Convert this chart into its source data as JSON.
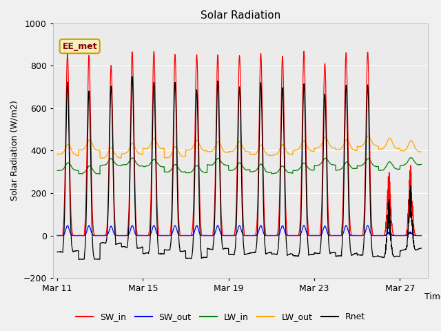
{
  "title": "Solar Radiation",
  "ylabel": "Solar Radiation (W/m2)",
  "xlabel": "Time",
  "ylim": [
    -200,
    1000
  ],
  "x_tick_labels": [
    "Mar 11",
    "Mar 15",
    "Mar 19",
    "Mar 23",
    "Mar 27"
  ],
  "x_tick_positions": [
    0,
    4,
    8,
    12,
    16
  ],
  "annotation_text": "EE_met",
  "plot_bg_color": "#ebebeb",
  "fig_bg_color": "#ffffff",
  "legend_items": [
    "SW_in",
    "SW_out",
    "LW_in",
    "LW_out",
    "Rnet"
  ],
  "line_colors": {
    "SW_in": "red",
    "SW_out": "blue",
    "LW_in": "green",
    "LW_out": "orange",
    "Rnet": "black"
  },
  "n_days": 17,
  "pts_per_day": 144,
  "SW_peak": 870,
  "LW_in_base": 310,
  "LW_out_base": 380,
  "Rnet_night": -80
}
